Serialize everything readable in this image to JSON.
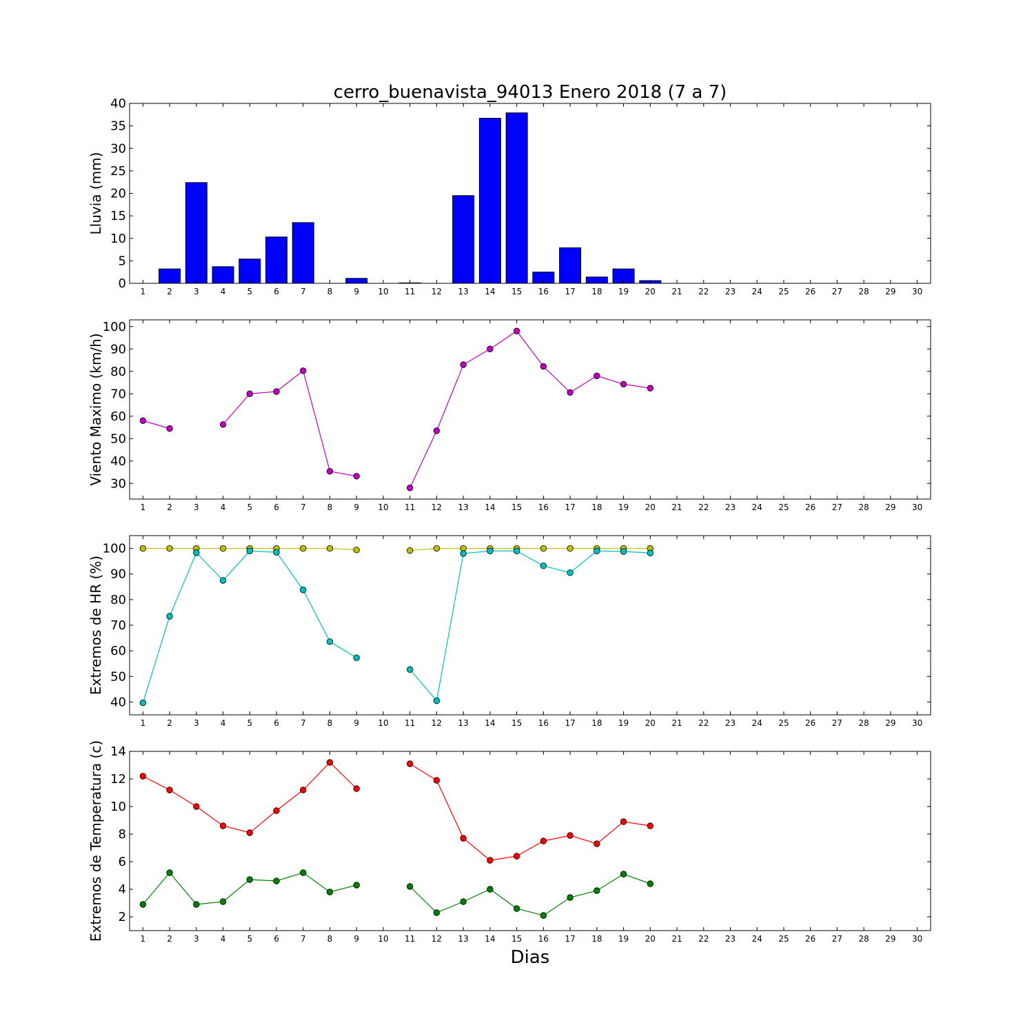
{
  "figure": {
    "title": "cerro_buenavista_94013 Enero 2018  (7 a 7)",
    "xlabel": "Dias"
  },
  "chart_data": [
    {
      "type": "bar",
      "ylabel": "Lluvia (mm)",
      "ylim": [
        0,
        40
      ],
      "yticks": [
        0,
        5,
        10,
        15,
        20,
        25,
        30,
        35,
        40
      ],
      "xlim": [
        0.5,
        30.5
      ],
      "xticks": [
        1,
        2,
        3,
        4,
        5,
        6,
        7,
        8,
        9,
        10,
        11,
        12,
        13,
        14,
        15,
        16,
        17,
        18,
        19,
        20,
        21,
        22,
        23,
        24,
        25,
        26,
        27,
        28,
        29,
        30
      ],
      "series": [
        {
          "color": "#0000ff",
          "x": [
            1,
            2,
            3,
            4,
            5,
            6,
            7,
            8,
            9,
            10,
            11,
            12,
            13,
            14,
            15,
            16,
            17,
            18,
            19,
            20
          ],
          "values": [
            0,
            3.2,
            22.4,
            3.7,
            5.4,
            10.3,
            13.5,
            0,
            1.1,
            0,
            0.1,
            0,
            19.5,
            36.7,
            37.9,
            2.5,
            7.9,
            1.4,
            3.2,
            0.6
          ]
        }
      ]
    },
    {
      "type": "line",
      "ylabel": "Viento Maximo (km/h)",
      "ylim": [
        23,
        103
      ],
      "yticks": [
        30,
        40,
        50,
        60,
        70,
        80,
        90,
        100
      ],
      "xlim": [
        0.5,
        30.5
      ],
      "xticks": [
        1,
        2,
        3,
        4,
        5,
        6,
        7,
        8,
        9,
        10,
        11,
        12,
        13,
        14,
        15,
        16,
        17,
        18,
        19,
        20,
        21,
        22,
        23,
        24,
        25,
        26,
        27,
        28,
        29,
        30
      ],
      "series": [
        {
          "color": "#bf00bf",
          "x": [
            1,
            2,
            3,
            4,
            5,
            6,
            7,
            8,
            9,
            10,
            11,
            12,
            13,
            14,
            15,
            16,
            17,
            18,
            19,
            20
          ],
          "values": [
            58,
            54.5,
            null,
            56.3,
            70,
            71,
            80.3,
            35.4,
            33.2,
            null,
            28,
            53.5,
            83,
            90,
            98,
            82.2,
            70.6,
            78,
            74.3,
            72.5
          ]
        }
      ]
    },
    {
      "type": "line",
      "ylabel": "Extremos de HR (%)",
      "ylim": [
        35,
        105
      ],
      "yticks": [
        40,
        50,
        60,
        70,
        80,
        90,
        100
      ],
      "xlim": [
        0.5,
        30.5
      ],
      "xticks": [
        1,
        2,
        3,
        4,
        5,
        6,
        7,
        8,
        9,
        10,
        11,
        12,
        13,
        14,
        15,
        16,
        17,
        18,
        19,
        20,
        21,
        22,
        23,
        24,
        25,
        26,
        27,
        28,
        29,
        30
      ],
      "series": [
        {
          "color": "#bfbf00",
          "x": [
            1,
            2,
            3,
            4,
            5,
            6,
            7,
            8,
            9,
            10,
            11,
            12,
            13,
            14,
            15,
            16,
            17,
            18,
            19,
            20
          ],
          "values": [
            100,
            100,
            100,
            100,
            100,
            100,
            100,
            100,
            99.4,
            null,
            99.2,
            100,
            100,
            100,
            100,
            100,
            100,
            100,
            100,
            100
          ]
        },
        {
          "color": "#00bfbf",
          "x": [
            1,
            2,
            3,
            4,
            5,
            6,
            7,
            8,
            9,
            10,
            11,
            12,
            13,
            14,
            15,
            16,
            17,
            18,
            19,
            20
          ],
          "values": [
            39.7,
            73.5,
            98.3,
            87.5,
            99,
            98.5,
            83.8,
            63.6,
            57.3,
            null,
            52.7,
            40.5,
            98,
            99,
            99,
            93.2,
            90.5,
            99,
            98.8,
            98.2
          ]
        }
      ]
    },
    {
      "type": "line",
      "ylabel": "Extremos de Temperatura (c)",
      "ylim": [
        1,
        14
      ],
      "yticks": [
        2,
        4,
        6,
        8,
        10,
        12,
        14
      ],
      "xlim": [
        0.5,
        30.5
      ],
      "xticks": [
        1,
        2,
        3,
        4,
        5,
        6,
        7,
        8,
        9,
        10,
        11,
        12,
        13,
        14,
        15,
        16,
        17,
        18,
        19,
        20,
        21,
        22,
        23,
        24,
        25,
        26,
        27,
        28,
        29,
        30
      ],
      "series": [
        {
          "color": "#ff0000",
          "x": [
            1,
            2,
            3,
            4,
            5,
            6,
            7,
            8,
            9,
            10,
            11,
            12,
            13,
            14,
            15,
            16,
            17,
            18,
            19,
            20
          ],
          "values": [
            12.2,
            11.2,
            10,
            8.6,
            8.1,
            9.7,
            11.2,
            13.2,
            11.3,
            null,
            13.1,
            11.9,
            7.7,
            6.1,
            6.4,
            7.5,
            7.9,
            7.3,
            8.9,
            8.6
          ]
        },
        {
          "color": "#008000",
          "x": [
            1,
            2,
            3,
            4,
            5,
            6,
            7,
            8,
            9,
            10,
            11,
            12,
            13,
            14,
            15,
            16,
            17,
            18,
            19,
            20
          ],
          "values": [
            2.9,
            5.2,
            2.9,
            3.1,
            4.7,
            4.6,
            5.2,
            3.8,
            4.3,
            null,
            4.2,
            2.3,
            3.1,
            4,
            2.6,
            2.1,
            3.4,
            3.9,
            5.1,
            4.4
          ]
        }
      ]
    }
  ]
}
